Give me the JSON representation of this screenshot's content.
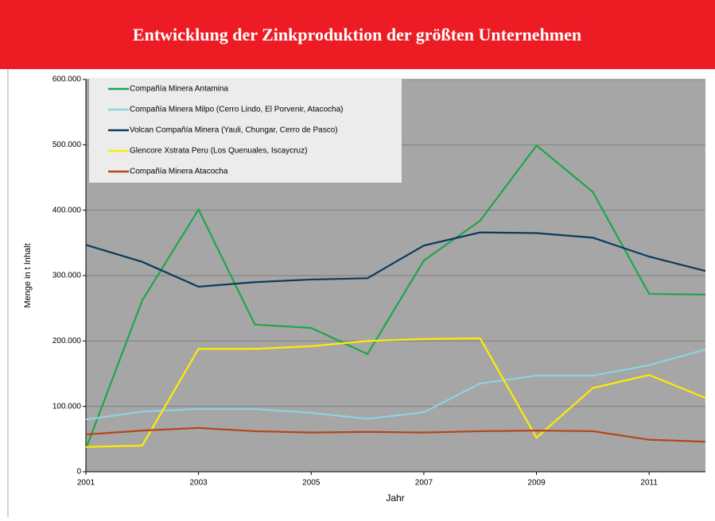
{
  "chart_data": {
    "type": "line",
    "title": "Entwicklung der Zinkproduktion der größten Unternehmen",
    "x_label": "Jahr",
    "y_label": "Menge in t Inhalt",
    "x": [
      2001,
      2002,
      2003,
      2004,
      2005,
      2006,
      2007,
      2008,
      2009,
      2010,
      2011,
      2012
    ],
    "xlim": [
      2001,
      2012
    ],
    "xticks": [
      2001,
      2003,
      2005,
      2007,
      2009,
      2011
    ],
    "ylim": [
      0,
      600000
    ],
    "yticks": [
      0,
      {
        "value": 100000,
        "label": "100.000"
      },
      {
        "value": 200000,
        "label": "200.000"
      },
      {
        "value": 300000,
        "label": "300.000"
      },
      {
        "value": 400000,
        "label": "400.000"
      },
      {
        "value": 500000,
        "label": "500.000"
      },
      {
        "value": 600000,
        "label": "600.000"
      }
    ],
    "grid": true,
    "legend": "upper left",
    "series": [
      {
        "name": "Compañía Minera Antamina",
        "color": "#1fa64a",
        "values": [
          35000,
          262000,
          401000,
          225000,
          220000,
          180000,
          323000,
          384000,
          499000,
          428000,
          272000,
          271000
        ]
      },
      {
        "name": "Compañía Minera Milpo (Cerro Lindo, El Porvenir, Atacocha)",
        "color": "#8fd3e0",
        "values": [
          80000,
          92000,
          96000,
          96000,
          90000,
          81000,
          91000,
          135000,
          147000,
          147000,
          163000,
          187000
        ]
      },
      {
        "name": "Volcan Compañía Minera (Yauli, Chungar, Cerro de Pasco)",
        "color": "#0b3a5c",
        "values": [
          347000,
          321000,
          283000,
          290000,
          294000,
          296000,
          346000,
          366000,
          365000,
          358000,
          329000,
          307000
        ]
      },
      {
        "name": "Glencore Xstrata Peru (Los Quenuales, Iscaycruz)",
        "color": "#ffed00",
        "values": [
          38000,
          40000,
          188000,
          188000,
          192000,
          200000,
          203000,
          204000,
          52000,
          128000,
          148000,
          113000
        ]
      },
      {
        "name": "Compañía Minera Atacocha",
        "color": "#b5461a",
        "values": [
          57000,
          63000,
          67000,
          62000,
          60000,
          61000,
          60000,
          62000,
          63000,
          62000,
          49000,
          46000
        ]
      }
    ]
  }
}
